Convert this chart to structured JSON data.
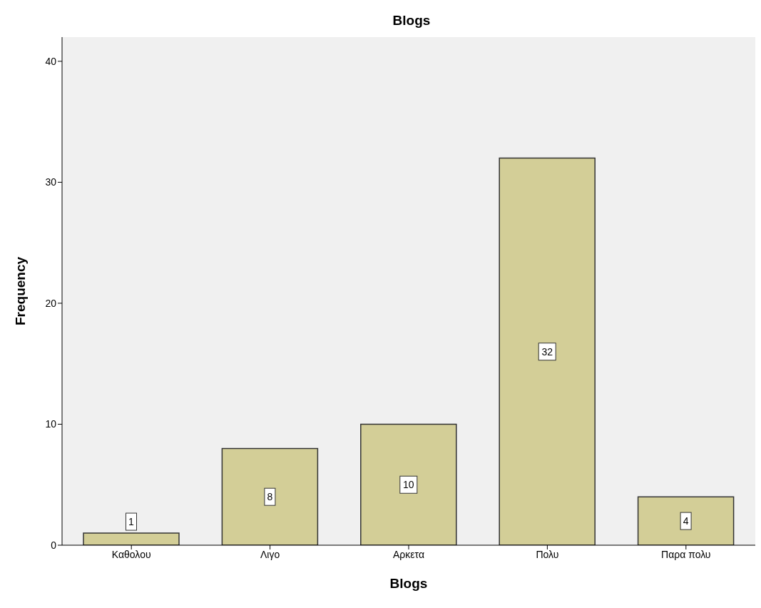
{
  "chart_data": {
    "type": "bar",
    "title": "Blogs",
    "xlabel": "Blogs",
    "ylabel": "Frequency",
    "categories": [
      "Καθολου",
      "Λιγο",
      "Αρκετα",
      "Πολυ",
      "Παρα πολυ"
    ],
    "values": [
      1,
      8,
      10,
      32,
      4
    ],
    "color": "#d3ce97",
    "ylim": [
      0,
      42
    ],
    "yticks": [
      0,
      10,
      20,
      30,
      40
    ],
    "data_labels": true
  }
}
